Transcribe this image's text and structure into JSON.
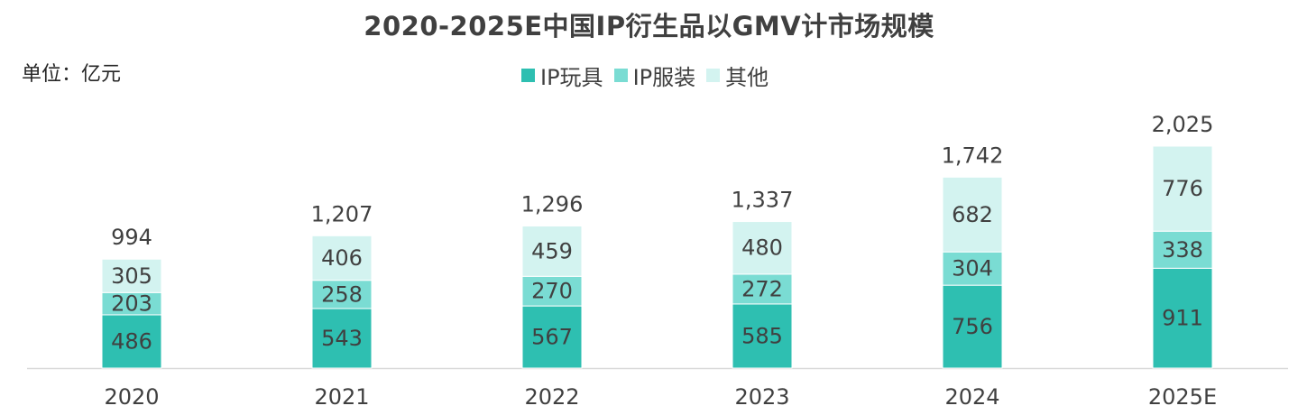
{
  "chart_data": {
    "type": "bar",
    "stacked": true,
    "title": "2020-2025E中国IP衍生品以GMV计市场规模",
    "unit_label": "单位：亿元",
    "categories": [
      "2020",
      "2021",
      "2022",
      "2023",
      "2024",
      "2025E"
    ],
    "series": [
      {
        "name": "IP玩具",
        "color": "#2ebfb1",
        "values": [
          486,
          543,
          567,
          585,
          756,
          911
        ]
      },
      {
        "name": "IP服装",
        "color": "#7adcd3",
        "values": [
          203,
          258,
          270,
          272,
          304,
          338
        ]
      },
      {
        "name": "其他",
        "color": "#d3f3f0",
        "values": [
          305,
          406,
          459,
          480,
          682,
          776
        ]
      }
    ],
    "totals": [
      "994",
      "1,207",
      "1,296",
      "1,337",
      "1,742",
      "2,025"
    ],
    "legend_position": "top-center",
    "grid": false,
    "ylim": [
      0,
      2025
    ]
  }
}
